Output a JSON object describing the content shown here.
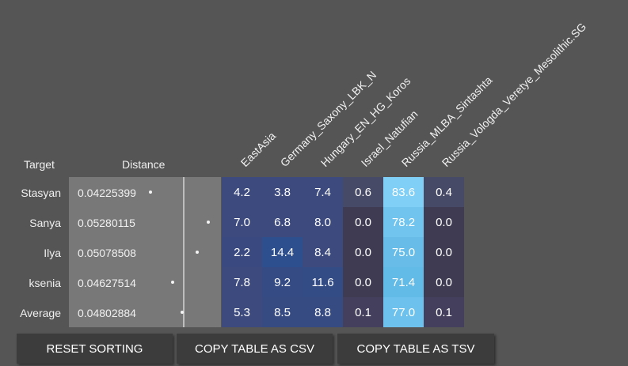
{
  "headers": {
    "target": "Target",
    "distance": "Distance"
  },
  "columns": [
    "EastAsia",
    "Germany_Saxony_LBK_N",
    "Hungary_EN_HG_Koros",
    "Israel_Natufian",
    "Russia_MLBA_Sintashta",
    "Russia_Vologda_Veretye_Mesolithic.SG"
  ],
  "rows": [
    {
      "label": "Stasyan",
      "distance": "0.04225399",
      "distance_value": 0.04225399,
      "values": [
        "4.2",
        "3.8",
        "7.4",
        "0.6",
        "83.6",
        "0.4"
      ]
    },
    {
      "label": "Sanya",
      "distance": "0.05280115",
      "distance_value": 0.05280115,
      "values": [
        "7.0",
        "6.8",
        "8.0",
        "0.0",
        "78.2",
        "0.0"
      ]
    },
    {
      "label": "Ilya",
      "distance": "0.05078508",
      "distance_value": 0.05078508,
      "values": [
        "2.2",
        "14.4",
        "8.4",
        "0.0",
        "75.0",
        "0.0"
      ]
    },
    {
      "label": "ksenia",
      "distance": "0.04627514",
      "distance_value": 0.04627514,
      "values": [
        "7.8",
        "9.2",
        "11.6",
        "0.0",
        "71.4",
        "0.0"
      ]
    },
    {
      "label": "Average",
      "distance": "0.04802884",
      "distance_value": 0.04802884,
      "values": [
        "5.3",
        "8.5",
        "8.8",
        "0.1",
        "77.0",
        "0.1"
      ]
    }
  ],
  "cell_colors": [
    [
      "#3c4a7e",
      "#3c4a7e",
      "#3c4a7e",
      "#474a66",
      "#7fcff6",
      "#474a66"
    ],
    [
      "#3c4a7e",
      "#3c4a7e",
      "#3c4a7e",
      "#3e3b52",
      "#70c4ee",
      "#3e3b52"
    ],
    [
      "#3a4a80",
      "#2e4f8d",
      "#3c4a7e",
      "#3e3b52",
      "#67bde8",
      "#3e3b52"
    ],
    [
      "#3c4a7e",
      "#344b84",
      "#334c86",
      "#3e3b52",
      "#62bae6",
      "#3e3b52"
    ],
    [
      "#3c4a7e",
      "#364b82",
      "#364b82",
      "#433f5c",
      "#6cc2ec",
      "#433f5c"
    ]
  ],
  "buttons": {
    "reset": "RESET SORTING",
    "csv": "COPY TABLE AS CSV",
    "tsv": "COPY TABLE AS TSV"
  }
}
